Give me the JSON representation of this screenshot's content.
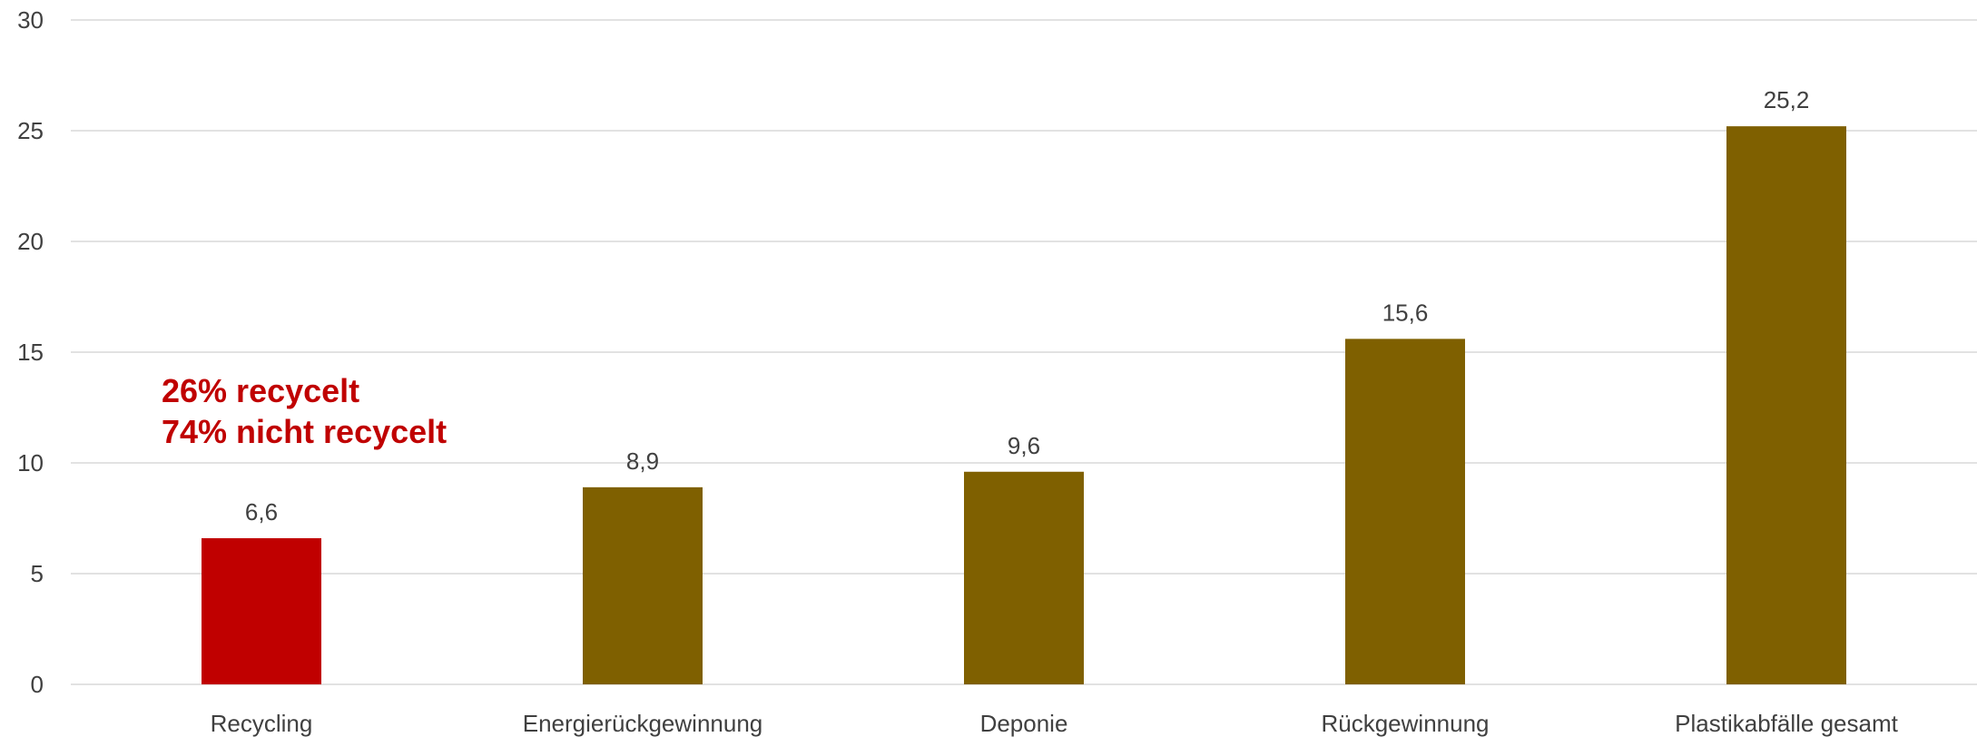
{
  "chart_data": {
    "type": "bar",
    "categories": [
      "Recycling",
      "Energierückgewinnung",
      "Deponie",
      "Rückgewinnung",
      "Plastikabfälle gesamt"
    ],
    "values": [
      6.6,
      8.9,
      9.6,
      15.6,
      25.2
    ],
    "value_labels": [
      "6,6",
      "8,9",
      "9,6",
      "15,6",
      "25,2"
    ],
    "bar_colors": [
      "#c00000",
      "#7f6000",
      "#7f6000",
      "#7f6000",
      "#7f6000"
    ],
    "ylim": [
      0,
      30
    ],
    "yticks": [
      0,
      5,
      10,
      15,
      20,
      25,
      30
    ],
    "grid": true,
    "title": "",
    "xlabel": "",
    "ylabel": "",
    "annotations": [
      "26% recycelt",
      "74% nicht recycelt"
    ],
    "annotation_color": "#c00000",
    "gridline_color": "#d9d9d9",
    "text_color": "#404040"
  }
}
